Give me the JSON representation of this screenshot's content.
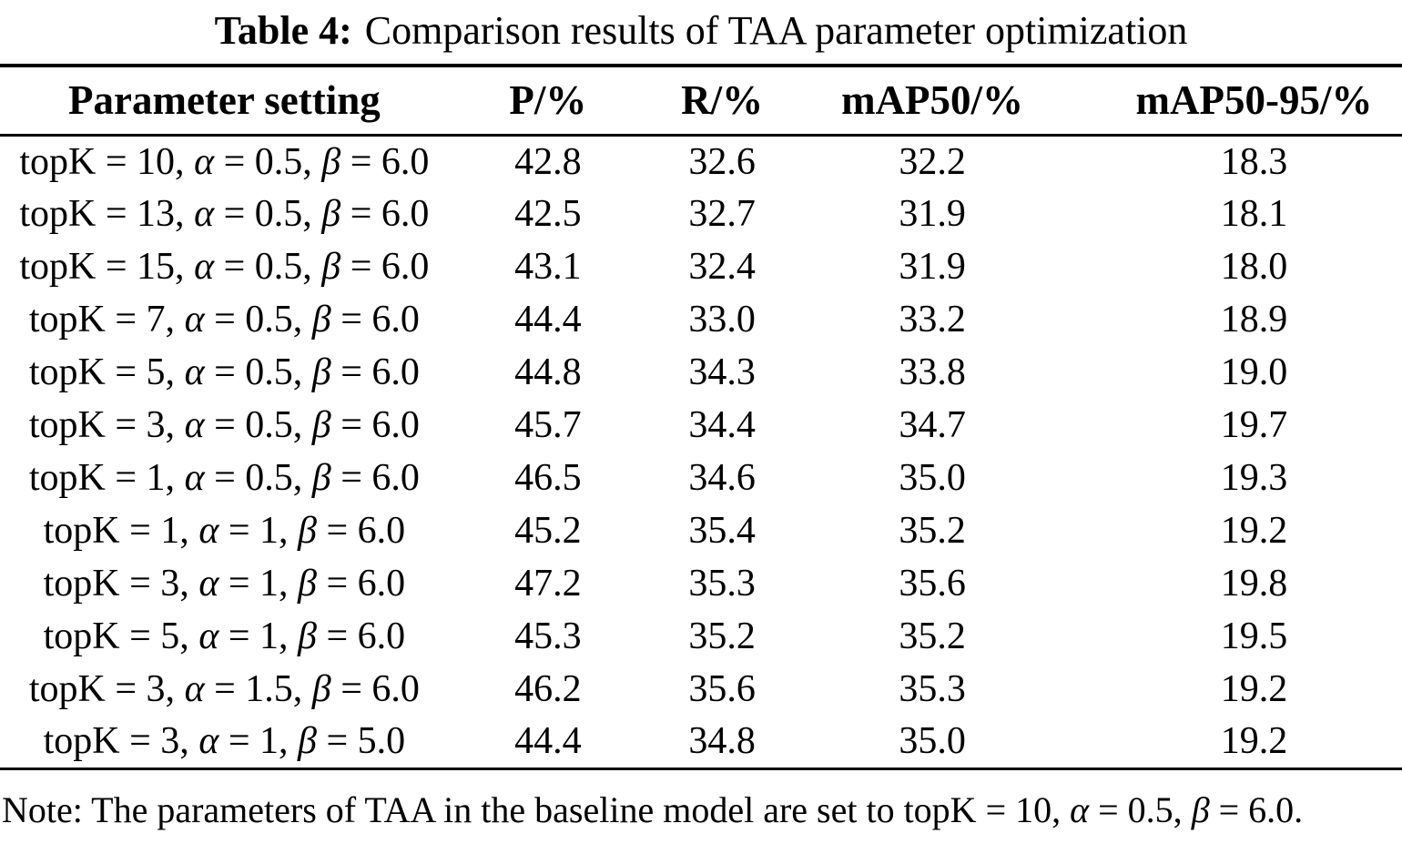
{
  "caption": {
    "label": "Table 4:",
    "text": "Comparison results of TAA parameter optimization"
  },
  "table": {
    "columns": [
      "Parameter setting",
      "P/%",
      "R/%",
      "mAP50/%",
      "mAP50-95/%"
    ],
    "rows": [
      {
        "setting": "topK = 10, α = 0.5, β = 6.0",
        "p": "42.8",
        "r": "32.6",
        "map50": "32.2",
        "map50_95": "18.3"
      },
      {
        "setting": "topK = 13, α = 0.5, β = 6.0",
        "p": "42.5",
        "r": "32.7",
        "map50": "31.9",
        "map50_95": "18.1"
      },
      {
        "setting": "topK = 15, α = 0.5, β = 6.0",
        "p": "43.1",
        "r": "32.4",
        "map50": "31.9",
        "map50_95": "18.0"
      },
      {
        "setting": "topK = 7, α = 0.5, β = 6.0",
        "p": "44.4",
        "r": "33.0",
        "map50": "33.2",
        "map50_95": "18.9"
      },
      {
        "setting": "topK = 5, α = 0.5, β = 6.0",
        "p": "44.8",
        "r": "34.3",
        "map50": "33.8",
        "map50_95": "19.0"
      },
      {
        "setting": "topK = 3, α = 0.5, β = 6.0",
        "p": "45.7",
        "r": "34.4",
        "map50": "34.7",
        "map50_95": "19.7"
      },
      {
        "setting": "topK = 1, α = 0.5, β = 6.0",
        "p": "46.5",
        "r": "34.6",
        "map50": "35.0",
        "map50_95": "19.3"
      },
      {
        "setting": "topK = 1, α = 1, β = 6.0",
        "p": "45.2",
        "r": "35.4",
        "map50": "35.2",
        "map50_95": "19.2"
      },
      {
        "setting": "topK = 3, α = 1, β = 6.0",
        "p": "47.2",
        "r": "35.3",
        "map50": "35.6",
        "map50_95": "19.8"
      },
      {
        "setting": "topK = 5, α = 1, β = 6.0",
        "p": "45.3",
        "r": "35.2",
        "map50": "35.2",
        "map50_95": "19.5"
      },
      {
        "setting": "topK = 3, α = 1.5, β = 6.0",
        "p": "46.2",
        "r": "35.6",
        "map50": "35.3",
        "map50_95": "19.2"
      },
      {
        "setting": "topK = 3, α = 1, β = 5.0",
        "p": "44.4",
        "r": "34.8",
        "map50": "35.0",
        "map50_95": "19.2"
      }
    ]
  },
  "note": "Note: The parameters of TAA in the baseline model are set to topK = 10, α = 0.5, β = 6.0."
}
